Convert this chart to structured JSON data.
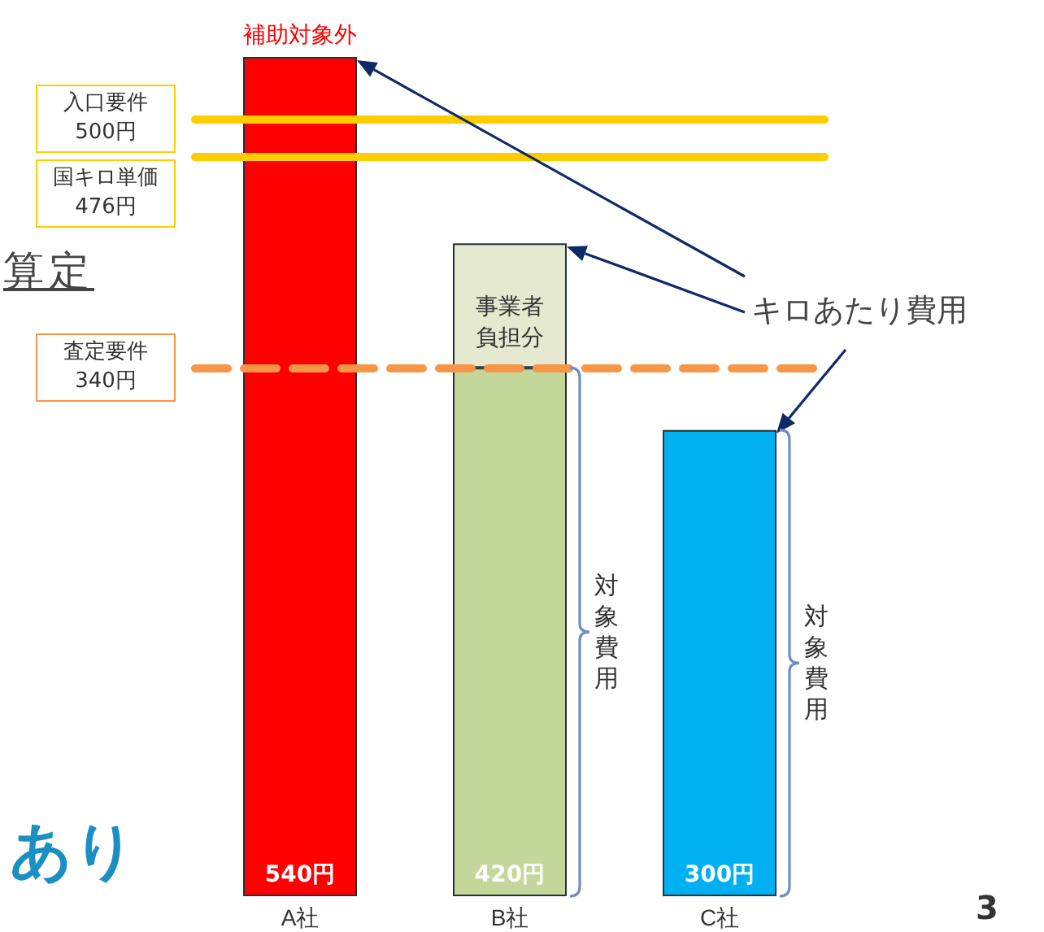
{
  "chart_data": {
    "type": "bar",
    "stacked": true,
    "categories": [
      "A社",
      "B社",
      "C社"
    ],
    "series": [
      {
        "colors": [
          "#ff0000",
          "#c4d79b",
          "#00b0f0"
        ],
        "values": [
          540,
          340,
          300
        ],
        "value_labels": [
          "540円",
          null,
          "300円"
        ]
      },
      {
        "name": "事業者負担分",
        "color": "#e4e9cf",
        "values": [
          null,
          80,
          null
        ]
      }
    ],
    "totals": [
      null,
      "420円",
      null
    ],
    "ref_lines": [
      {
        "axis": "y",
        "value": 500,
        "label": "入口要件\n500円",
        "color": "#ffcc00",
        "line_style": "solid"
      },
      {
        "axis": "y",
        "value": 476,
        "label": "国キロ単価\n476円",
        "color": "#ffcc00",
        "line_style": "solid"
      },
      {
        "axis": "y",
        "value": 340,
        "label": "査定要件\n340円",
        "color": "#f79646",
        "line_style": "dashed"
      }
    ],
    "annotations": [
      {
        "text": "補助対象外",
        "x": "A社",
        "y": 540
      },
      "キロあたり費用",
      "対象費用",
      "対象費用",
      "算定",
      "あり",
      "3"
    ]
  }
}
